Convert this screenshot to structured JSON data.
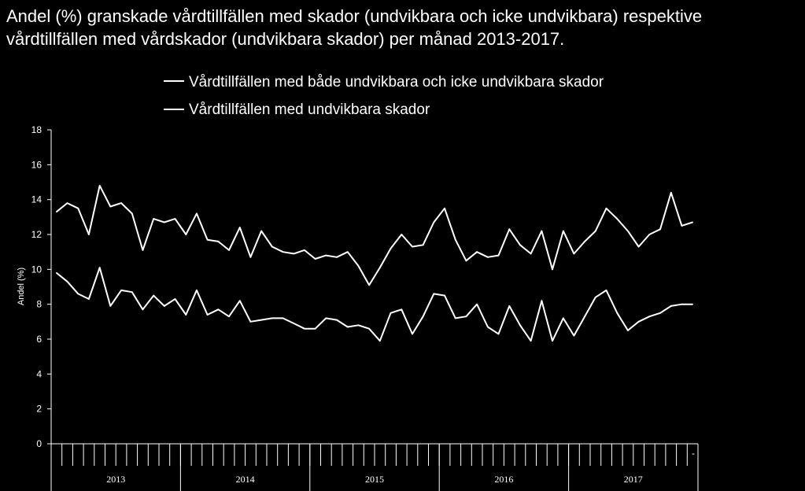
{
  "chart_data": {
    "type": "line",
    "title": "Andel (%) granskade vårdtillfällen med skador (undvikbara och icke undvikbara) respektive\nvårdtillfällen med vårdskador (undvikbara skador) per månad 2013-2017.",
    "ylabel": "Andel (%)",
    "xlabel": "",
    "ylim": [
      0,
      18
    ],
    "yticks": [
      "0",
      "2",
      "4",
      "6",
      "8",
      "10",
      "12",
      "14",
      "16",
      "18"
    ],
    "years": [
      "2013",
      "2014",
      "2015",
      "2016",
      "2017"
    ],
    "x_tail_mark": "-",
    "grid": false,
    "legend_position": "top",
    "line_color": "#ffffff",
    "background_color": "#000000",
    "series": [
      {
        "name": "Vårdtillfällen med både undvikbara och icke undvikbara skador",
        "values": [
          13.3,
          13.8,
          13.5,
          12.0,
          14.8,
          13.6,
          13.8,
          13.2,
          11.1,
          12.9,
          12.7,
          12.9,
          12.0,
          13.2,
          11.7,
          11.6,
          11.1,
          12.4,
          10.7,
          12.2,
          11.3,
          11.0,
          10.9,
          11.1,
          10.6,
          10.8,
          10.7,
          11.0,
          10.2,
          9.1,
          10.1,
          11.2,
          12.0,
          11.3,
          11.4,
          12.7,
          13.5,
          11.7,
          10.5,
          11.0,
          10.7,
          10.8,
          12.3,
          11.4,
          10.9,
          12.2,
          10.0,
          12.2,
          10.9,
          11.6,
          12.2,
          13.5,
          12.9,
          12.2,
          11.3,
          12.0,
          12.3,
          14.4,
          12.5,
          12.7
        ]
      },
      {
        "name": "Vårdtillfällen med undvikbara skador",
        "values": [
          9.8,
          9.3,
          8.6,
          8.3,
          10.1,
          7.9,
          8.8,
          8.7,
          7.7,
          8.5,
          7.9,
          8.3,
          7.4,
          8.8,
          7.4,
          7.7,
          7.3,
          8.2,
          7.0,
          7.1,
          7.2,
          7.2,
          6.9,
          6.6,
          6.6,
          7.2,
          7.1,
          6.7,
          6.8,
          6.6,
          5.9,
          7.5,
          7.7,
          6.3,
          7.3,
          8.6,
          8.5,
          7.2,
          7.3,
          8.0,
          6.7,
          6.3,
          7.9,
          6.8,
          5.9,
          8.2,
          5.9,
          7.2,
          6.2,
          7.3,
          8.4,
          8.8,
          7.5,
          6.5,
          7.0,
          7.3,
          7.5,
          7.9,
          8.0,
          8.0
        ]
      }
    ]
  }
}
